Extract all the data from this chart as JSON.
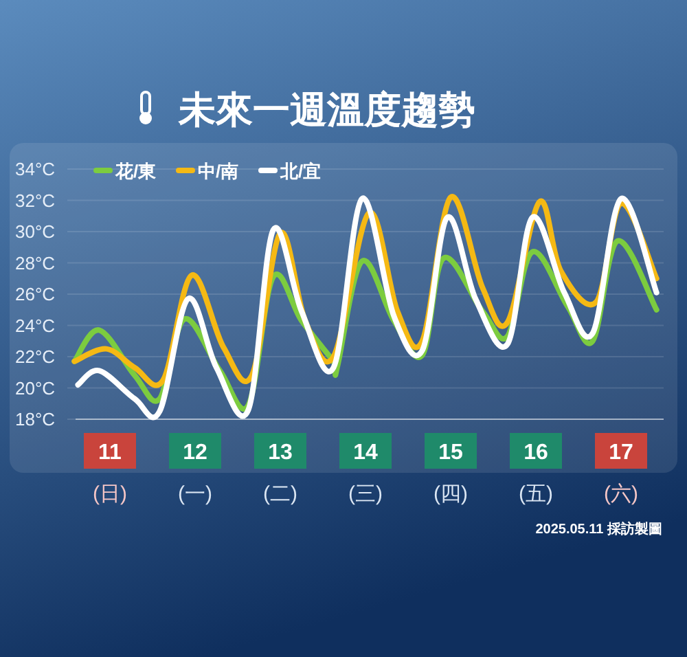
{
  "chart_data": {
    "type": "line",
    "title": "未來一週溫度趨勢",
    "xlim": [
      "2025-05-11T00:00",
      "2025-05-18T00:00"
    ],
    "xticks": [
      {
        "value": "2025-05-11T12:00",
        "label": "11\n(日)"
      },
      {
        "value": "2025-05-12T12:00",
        "label": "12\n(一)"
      },
      {
        "value": "2025-05-13T12:00",
        "label": "13\n(二)"
      },
      {
        "value": "2025-05-14T12:00",
        "label": "14\n(三)"
      },
      {
        "value": "2025-05-15T12:00",
        "label": "15\n(四)"
      },
      {
        "value": "2025-05-16T12:00",
        "label": "16\n(五)"
      },
      {
        "value": "2025-05-17T12:00",
        "label": "17\n(六)"
      }
    ],
    "ylim": [
      18,
      34
    ],
    "yticks": [
      {
        "value": 18,
        "label": "18°C"
      },
      {
        "value": 20,
        "label": "20°C"
      },
      {
        "value": 22,
        "label": "22°C"
      },
      {
        "value": 24,
        "label": "24°C"
      },
      {
        "value": 26,
        "label": "26°C"
      },
      {
        "value": 28,
        "label": "28°C"
      },
      {
        "value": 30,
        "label": "30°C"
      },
      {
        "value": 32,
        "label": "32°C"
      },
      {
        "value": 34,
        "label": "34°C"
      }
    ],
    "grid": "y",
    "legend": "top left",
    "marker": "none",
    "line_style": "solid",
    "series": [
      {
        "name": "花/東",
        "color": "#7ccc3f",
        "x": [
          "2025-05-11T02:00",
          "2025-05-11T09:00",
          "2025-05-11T19:00",
          "2025-05-12T02:00",
          "2025-05-12T09:00",
          "2025-05-12T19:00",
          "2025-05-13T03:00",
          "2025-05-13T10:00",
          "2025-05-13T18:00",
          "2025-05-14T03:00",
          "2025-05-14T04:00",
          "2025-05-14T11:00",
          "2025-05-14T20:00",
          "2025-05-15T04:00",
          "2025-05-15T10:00",
          "2025-05-15T21:00",
          "2025-05-16T04:00",
          "2025-05-16T11:00",
          "2025-05-16T21:00",
          "2025-05-17T04:00",
          "2025-05-17T11:00",
          "2025-05-17T22:00"
        ],
        "values": [
          21.7,
          23.7,
          20.8,
          19.3,
          24.4,
          21.1,
          18.9,
          27.1,
          24.3,
          21.7,
          21.3,
          28.1,
          24.3,
          22.1,
          28.3,
          24.9,
          23.3,
          28.7,
          25.2,
          23.0,
          29.4,
          25.0
        ]
      },
      {
        "name": "中/南",
        "color": "#f5b914",
        "x": [
          "2025-05-11T02:00",
          "2025-05-11T11:00",
          "2025-05-11T19:00",
          "2025-05-12T03:00",
          "2025-05-12T11:00",
          "2025-05-12T20:00",
          "2025-05-13T04:00",
          "2025-05-13T12:00",
          "2025-05-13T19:00",
          "2025-05-14T03:00",
          "2025-05-14T13:00",
          "2025-05-14T21:00",
          "2025-05-15T04:00",
          "2025-05-15T12:00",
          "2025-05-15T21:00",
          "2025-05-16T04:00",
          "2025-05-16T13:00",
          "2025-05-16T19:00",
          "2025-05-17T05:00",
          "2025-05-17T12:00",
          "2025-05-17T22:00"
        ],
        "values": [
          21.7,
          22.5,
          21.3,
          20.5,
          27.2,
          22.6,
          20.8,
          29.9,
          24.3,
          22.0,
          31.2,
          24.9,
          23.0,
          32.2,
          26.4,
          24.2,
          31.9,
          27.5,
          25.5,
          31.8,
          27.0
        ]
      },
      {
        "name": "北/宜",
        "color": "#ffffff",
        "x": [
          "2025-05-11T03:00",
          "2025-05-11T09:00",
          "2025-05-11T19:00",
          "2025-05-12T02:00",
          "2025-05-12T10:00",
          "2025-05-12T18:00",
          "2025-05-13T03:00",
          "2025-05-13T10:00",
          "2025-05-13T18:00",
          "2025-05-14T03:00",
          "2025-05-14T11:00",
          "2025-05-14T20:00",
          "2025-05-15T04:00",
          "2025-05-15T11:00",
          "2025-05-15T19:00",
          "2025-05-16T04:00",
          "2025-05-16T11:00",
          "2025-05-16T20:00",
          "2025-05-17T04:00",
          "2025-05-17T12:00",
          "2025-05-17T22:00"
        ],
        "values": [
          20.2,
          21.1,
          19.3,
          18.5,
          25.7,
          21.3,
          18.6,
          30.1,
          24.9,
          21.3,
          32.1,
          24.6,
          22.4,
          30.9,
          25.7,
          22.8,
          30.9,
          26.1,
          23.5,
          32.1,
          26.1
        ]
      }
    ],
    "annotations": [
      "2025.05.11 採訪製圖"
    ]
  }
}
